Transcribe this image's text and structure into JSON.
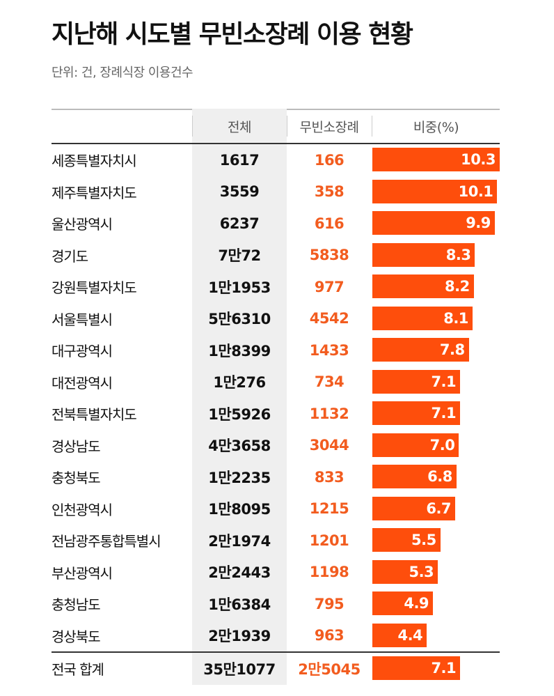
{
  "title": "지난해 시도별 무빈소장례 이용 현황",
  "subtitle": "단위: 건, 장례식장 이용건수",
  "columns": {
    "region": "",
    "total": "전체",
    "mubin": "무빈소장례",
    "share": "비중(%)"
  },
  "colors": {
    "bar": "#fe4e0c",
    "mubin_text": "#f25c1f",
    "total_bg": "#efefef"
  },
  "chart_data": {
    "type": "table",
    "title": "지난해 시도별 무빈소장례 이용 현황",
    "subtitle": "단위: 건, 장례식장 이용건수",
    "headers": [
      "",
      "전체",
      "무빈소장례",
      "비중(%)"
    ],
    "share_max": 10.3,
    "rows": [
      {
        "region": "세종특별자치시",
        "total": "1617",
        "mubin": "166",
        "share": 10.3,
        "share_label": "10.3"
      },
      {
        "region": "제주특별자치도",
        "total": "3559",
        "mubin": "358",
        "share": 10.1,
        "share_label": "10.1"
      },
      {
        "region": "울산광역시",
        "total": "6237",
        "mubin": "616",
        "share": 9.9,
        "share_label": "9.9"
      },
      {
        "region": "경기도",
        "total": "7만72",
        "mubin": "5838",
        "share": 8.3,
        "share_label": "8.3"
      },
      {
        "region": "강원특별자치도",
        "total": "1만1953",
        "mubin": "977",
        "share": 8.2,
        "share_label": "8.2"
      },
      {
        "region": "서울특별시",
        "total": "5만6310",
        "mubin": "4542",
        "share": 8.1,
        "share_label": "8.1"
      },
      {
        "region": "대구광역시",
        "total": "1만8399",
        "mubin": "1433",
        "share": 7.8,
        "share_label": "7.8"
      },
      {
        "region": "대전광역시",
        "total": "1만276",
        "mubin": "734",
        "share": 7.1,
        "share_label": "7.1"
      },
      {
        "region": "전북특별자치도",
        "total": "1만5926",
        "mubin": "1132",
        "share": 7.1,
        "share_label": "7.1"
      },
      {
        "region": "경상남도",
        "total": "4만3658",
        "mubin": "3044",
        "share": 7.0,
        "share_label": "7.0"
      },
      {
        "region": "충청북도",
        "total": "1만2235",
        "mubin": "833",
        "share": 6.8,
        "share_label": "6.8"
      },
      {
        "region": "인천광역시",
        "total": "1만8095",
        "mubin": "1215",
        "share": 6.7,
        "share_label": "6.7"
      },
      {
        "region": "전남광주통합특별시",
        "total": "2만1974",
        "mubin": "1201",
        "share": 5.5,
        "share_label": "5.5"
      },
      {
        "region": "부산광역시",
        "total": "2만2443",
        "mubin": "1198",
        "share": 5.3,
        "share_label": "5.3"
      },
      {
        "region": "충청남도",
        "total": "1만6384",
        "mubin": "795",
        "share": 4.9,
        "share_label": "4.9"
      },
      {
        "region": "경상북도",
        "total": "2만1939",
        "mubin": "963",
        "share": 4.4,
        "share_label": "4.4"
      }
    ],
    "total_row": {
      "region": "전국 합계",
      "total": "35만1077",
      "mubin": "2만5045",
      "share": 7.1,
      "share_label": "7.1"
    }
  }
}
